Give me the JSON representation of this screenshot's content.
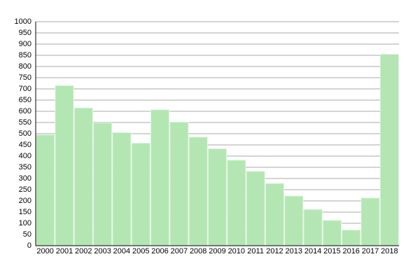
{
  "chart_data": {
    "type": "bar",
    "categories": [
      "2000",
      "2001",
      "2002",
      "2003",
      "2004",
      "2005",
      "2006",
      "2007",
      "2008",
      "2009",
      "2010",
      "2011",
      "2012",
      "2013",
      "2014",
      "2015",
      "2016",
      "2017",
      "2018"
    ],
    "values": [
      495,
      715,
      615,
      548,
      505,
      458,
      607,
      552,
      485,
      433,
      382,
      332,
      278,
      222,
      162,
      113,
      70,
      213,
      855
    ],
    "color": "#b3e6b3",
    "ylim": [
      0,
      1000
    ],
    "yticks": [
      0,
      50,
      100,
      150,
      200,
      250,
      300,
      350,
      400,
      450,
      500,
      550,
      600,
      650,
      700,
      750,
      800,
      850,
      900,
      950,
      1000
    ],
    "grid": true
  }
}
